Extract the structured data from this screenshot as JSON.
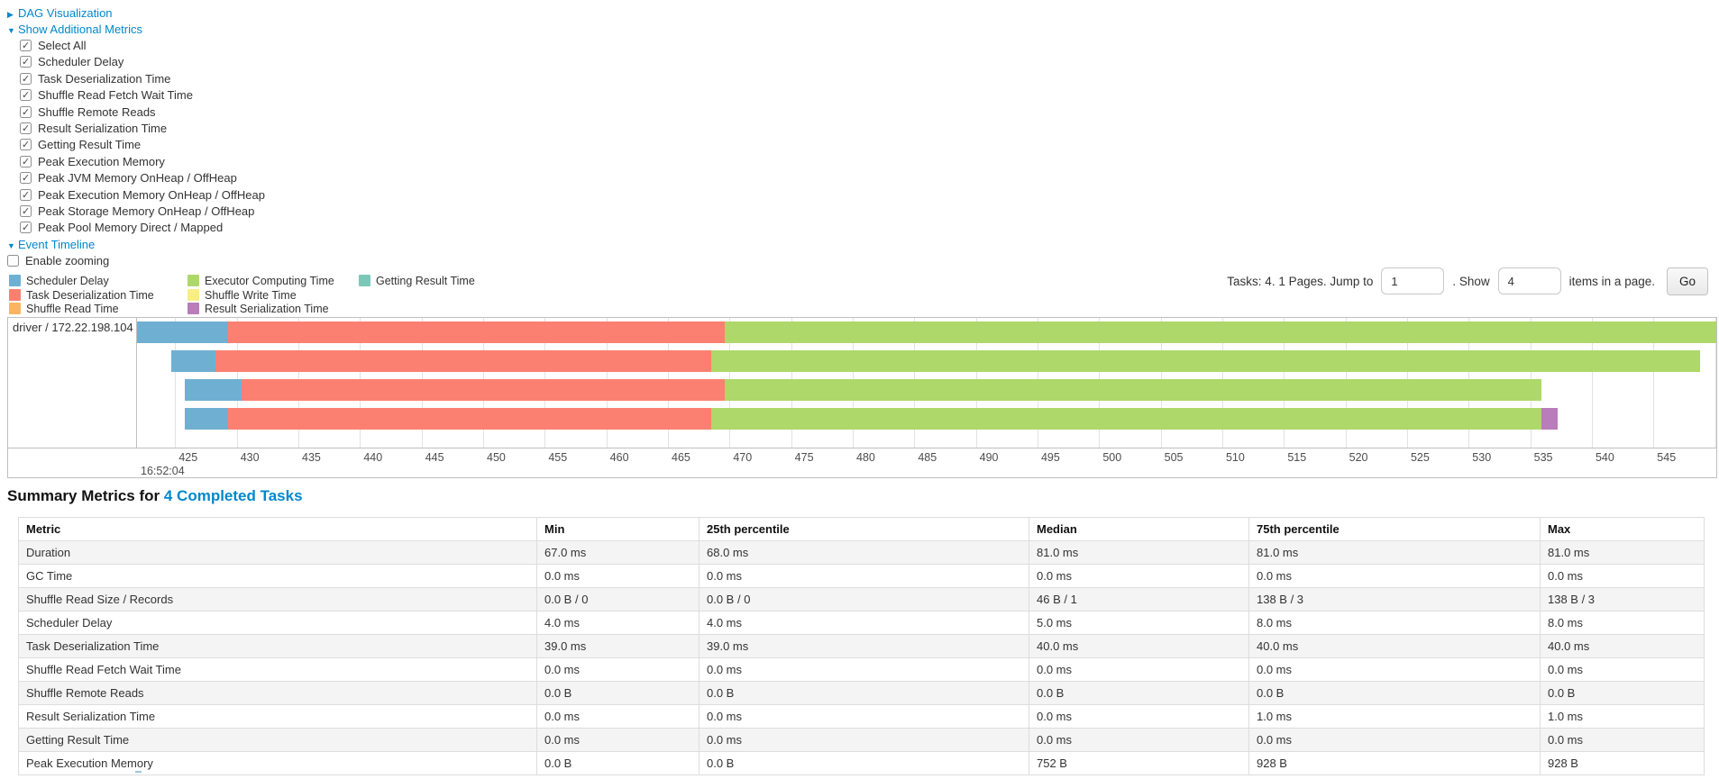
{
  "accent": {
    "link_blue": "#0088cc"
  },
  "toggles": {
    "dag": {
      "arrow": "▶",
      "label": "DAG Visualization"
    },
    "metrics": {
      "arrow": "▼",
      "label": "Show Additional Metrics"
    },
    "timeline": {
      "arrow": "▼",
      "label": "Event Timeline"
    }
  },
  "metric_checkboxes": [
    "Select All",
    "Scheduler Delay",
    "Task Deserialization Time",
    "Shuffle Read Fetch Wait Time",
    "Shuffle Remote Reads",
    "Result Serialization Time",
    "Getting Result Time",
    "Peak Execution Memory",
    "Peak JVM Memory OnHeap / OffHeap",
    "Peak Execution Memory OnHeap / OffHeap",
    "Peak Storage Memory OnHeap / OffHeap",
    "Peak Pool Memory Direct / Mapped"
  ],
  "enable_zooming_label": "Enable zooming",
  "legend": {
    "columns": [
      [
        {
          "label": "Scheduler Delay",
          "type": "scheduler-delay"
        },
        {
          "label": "Task Deserialization Time",
          "type": "task-deserialization"
        },
        {
          "label": "Shuffle Read Time",
          "type": "shuffle-read"
        }
      ],
      [
        {
          "label": "Executor Computing Time",
          "type": "executor-computing"
        },
        {
          "label": "Shuffle Write Time",
          "type": "shuffle-write"
        },
        {
          "label": "Result Serialization Time",
          "type": "result-serialization"
        }
      ],
      [
        {
          "label": "Getting Result Time",
          "type": "getting-result"
        }
      ]
    ]
  },
  "pager": {
    "tasks_text": "Tasks: 4. 1 Pages. Jump to",
    "jump_value": "1",
    "mid_text": ". Show",
    "show_value": "4",
    "suffix_text": "items in a page.",
    "go_label": "Go"
  },
  "chart_data": {
    "type": "timeline",
    "group_label": "driver / 172.22.198.104",
    "axis": {
      "min": 421.9,
      "max": 550.1,
      "tick_start": 425,
      "tick_step": 5,
      "tick_end": 550,
      "major_label": "16:52:04"
    },
    "colors": {
      "scheduler-delay": "#6FB0D2",
      "task-deserialization": "#FB8072",
      "shuffle-read": "#FDB462",
      "executor-computing": "#AED869",
      "shuffle-write": "#F9EE82",
      "result-serialization": "#B87DBA",
      "getting-result": "#7CC8B8"
    },
    "tasks": [
      {
        "segments": [
          {
            "type": "scheduler-delay",
            "start": 421.9,
            "end": 429.3
          },
          {
            "type": "task-deserialization",
            "start": 429.3,
            "end": 469.6
          },
          {
            "type": "executor-computing",
            "start": 469.6,
            "end": 550.3
          }
        ]
      },
      {
        "segments": [
          {
            "type": "scheduler-delay",
            "start": 424.7,
            "end": 428.3
          },
          {
            "type": "task-deserialization",
            "start": 428.3,
            "end": 468.5
          },
          {
            "type": "executor-computing",
            "start": 468.5,
            "end": 548.8
          }
        ]
      },
      {
        "segments": [
          {
            "type": "scheduler-delay",
            "start": 425.8,
            "end": 430.4
          },
          {
            "type": "task-deserialization",
            "start": 430.4,
            "end": 469.6
          },
          {
            "type": "executor-computing",
            "start": 469.6,
            "end": 535.9
          }
        ]
      },
      {
        "segments": [
          {
            "type": "scheduler-delay",
            "start": 425.8,
            "end": 429.3
          },
          {
            "type": "task-deserialization",
            "start": 429.3,
            "end": 468.5
          },
          {
            "type": "executor-computing",
            "start": 468.5,
            "end": 535.9
          },
          {
            "type": "result-serialization",
            "start": 535.9,
            "end": 537.2
          }
        ]
      }
    ]
  },
  "summary": {
    "heading_prefix": "Summary Metrics for",
    "heading_link": "4 Completed Tasks",
    "columns": [
      "Metric",
      "Min",
      "25th percentile",
      "Median",
      "75th percentile",
      "Max"
    ],
    "rows": [
      {
        "metric": "Duration",
        "values": [
          "67.0 ms",
          "68.0 ms",
          "81.0 ms",
          "81.0 ms",
          "81.0 ms"
        ]
      },
      {
        "metric": "GC Time",
        "values": [
          "0.0 ms",
          "0.0 ms",
          "0.0 ms",
          "0.0 ms",
          "0.0 ms"
        ]
      },
      {
        "metric": "Shuffle Read Size / Records",
        "values": [
          "0.0 B / 0",
          "0.0 B / 0",
          "46 B / 1",
          "138 B / 3",
          "138 B / 3"
        ]
      },
      {
        "metric": "Scheduler Delay",
        "values": [
          "4.0 ms",
          "4.0 ms",
          "5.0 ms",
          "8.0 ms",
          "8.0 ms"
        ]
      },
      {
        "metric": "Task Deserialization Time",
        "values": [
          "39.0 ms",
          "39.0 ms",
          "40.0 ms",
          "40.0 ms",
          "40.0 ms"
        ]
      },
      {
        "metric": "Shuffle Read Fetch Wait Time",
        "values": [
          "0.0 ms",
          "0.0 ms",
          "0.0 ms",
          "0.0 ms",
          "0.0 ms"
        ]
      },
      {
        "metric": "Shuffle Remote Reads",
        "values": [
          "0.0 B",
          "0.0 B",
          "0.0 B",
          "0.0 B",
          "0.0 B"
        ]
      },
      {
        "metric": "Result Serialization Time",
        "values": [
          "0.0 ms",
          "0.0 ms",
          "0.0 ms",
          "1.0 ms",
          "1.0 ms"
        ]
      },
      {
        "metric": "Getting Result Time",
        "values": [
          "0.0 ms",
          "0.0 ms",
          "0.0 ms",
          "0.0 ms",
          "0.0 ms"
        ]
      },
      {
        "metric": "Peak Execution Memory",
        "values": [
          "0.0 B",
          "0.0 B",
          "752 B",
          "928 B",
          "928 B"
        ]
      }
    ]
  }
}
